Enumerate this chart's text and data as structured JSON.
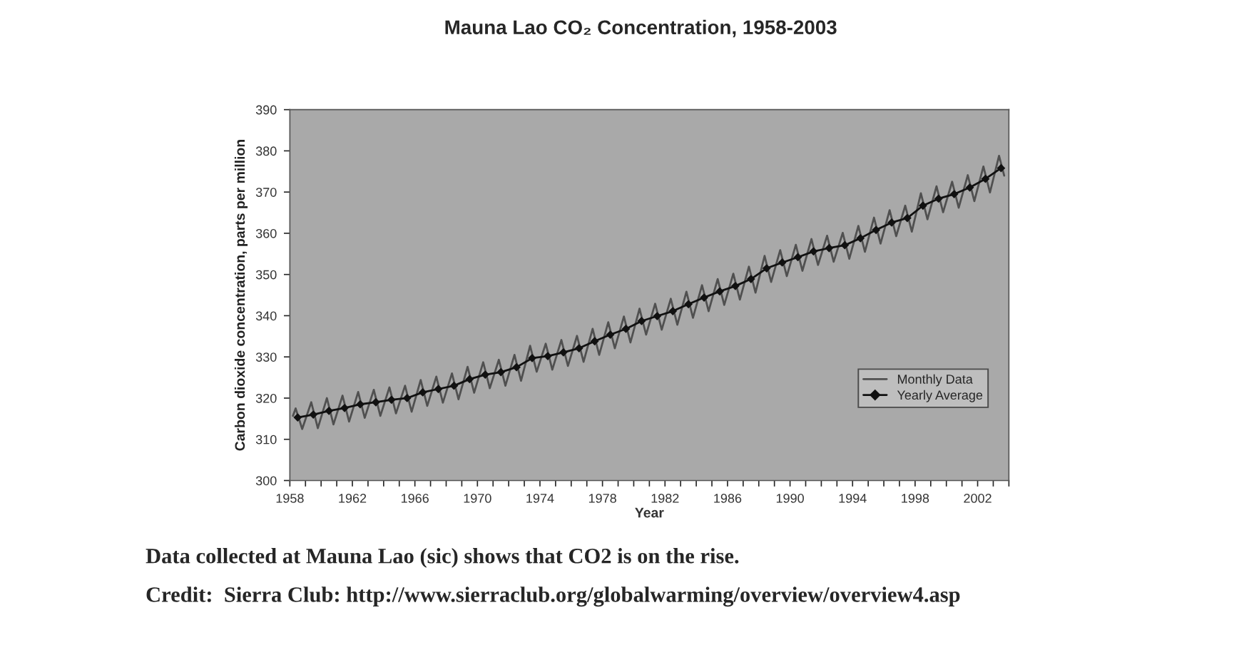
{
  "chart_data": {
    "type": "line",
    "title": "Mauna Lao CO₂ Concentration, 1958-2003",
    "xlabel": "Year",
    "ylabel": "Carbon dioxide concentration, parts per million",
    "annotations": [
      "Data collected at Mauna Lao (sic) shows that CO2 is on the rise.",
      "Credit:  Sierra Club: http://www.sierraclub.org/globalwarming/overview/overview4.asp"
    ],
    "xlim": [
      1958,
      2004
    ],
    "xticks": [
      1958,
      {
        "value": 1959,
        "label": null
      },
      {
        "value": 1960,
        "label": null
      },
      {
        "value": 1961,
        "label": null
      },
      1962,
      {
        "value": 1963,
        "label": null
      },
      {
        "value": 1964,
        "label": null
      },
      {
        "value": 1965,
        "label": null
      },
      1966,
      {
        "value": 1967,
        "label": null
      },
      {
        "value": 1968,
        "label": null
      },
      {
        "value": 1969,
        "label": null
      },
      1970,
      {
        "value": 1971,
        "label": null
      },
      {
        "value": 1972,
        "label": null
      },
      {
        "value": 1973,
        "label": null
      },
      1974,
      {
        "value": 1975,
        "label": null
      },
      {
        "value": 1976,
        "label": null
      },
      {
        "value": 1977,
        "label": null
      },
      1978,
      {
        "value": 1979,
        "label": null
      },
      {
        "value": 1980,
        "label": null
      },
      {
        "value": 1981,
        "label": null
      },
      1982,
      {
        "value": 1983,
        "label": null
      },
      {
        "value": 1984,
        "label": null
      },
      {
        "value": 1985,
        "label": null
      },
      1986,
      {
        "value": 1987,
        "label": null
      },
      {
        "value": 1988,
        "label": null
      },
      {
        "value": 1989,
        "label": null
      },
      1990,
      {
        "value": 1991,
        "label": null
      },
      {
        "value": 1992,
        "label": null
      },
      {
        "value": 1993,
        "label": null
      },
      1994,
      {
        "value": 1995,
        "label": null
      },
      {
        "value": 1996,
        "label": null
      },
      {
        "value": 1997,
        "label": null
      },
      1998,
      {
        "value": 1999,
        "label": null
      },
      {
        "value": 2000,
        "label": null
      },
      {
        "value": 2001,
        "label": null
      },
      2002,
      {
        "value": 2003,
        "label": null
      },
      {
        "value": 2004,
        "label": null
      }
    ],
    "ylim": [
      300,
      390
    ],
    "yticks": [
      300,
      310,
      320,
      330,
      340,
      350,
      360,
      370,
      380,
      390
    ],
    "grid": false,
    "legend": "bottom right",
    "line_style": "solid",
    "series": [
      {
        "name": "Monthly Data",
        "color": "#505050",
        "marker": "none",
        "x": [
          1958.2,
          1958.37,
          1958.79,
          1959.37,
          1959.79,
          1960.37,
          1960.79,
          1961.37,
          1961.79,
          1962.37,
          1962.79,
          1963.37,
          1963.79,
          1964.37,
          1964.79,
          1965.37,
          1965.79,
          1966.37,
          1966.79,
          1967.37,
          1967.79,
          1968.37,
          1968.79,
          1969.37,
          1969.79,
          1970.37,
          1970.79,
          1971.37,
          1971.79,
          1972.37,
          1972.79,
          1973.37,
          1973.79,
          1974.37,
          1974.79,
          1975.37,
          1975.79,
          1976.37,
          1976.79,
          1977.37,
          1977.79,
          1978.37,
          1978.79,
          1979.37,
          1979.79,
          1980.37,
          1980.79,
          1981.37,
          1981.79,
          1982.37,
          1982.79,
          1983.37,
          1983.79,
          1984.37,
          1984.79,
          1985.37,
          1985.79,
          1986.37,
          1986.79,
          1987.37,
          1987.79,
          1988.37,
          1988.79,
          1989.37,
          1989.79,
          1990.37,
          1990.79,
          1991.37,
          1991.79,
          1992.37,
          1992.79,
          1993.37,
          1993.79,
          1994.37,
          1994.79,
          1995.37,
          1995.79,
          1996.37,
          1996.79,
          1997.37,
          1997.79,
          1998.37,
          1998.79,
          1999.37,
          1999.79,
          2000.37,
          2000.79,
          2001.37,
          2001.79,
          2002.37,
          2002.79,
          2003.37,
          2003.7
        ],
        "values": [
          315.7,
          317.5,
          312.5,
          319.0,
          312.7,
          320.0,
          313.6,
          320.6,
          314.3,
          321.5,
          315.2,
          322.0,
          315.7,
          322.6,
          316.3,
          323.0,
          316.7,
          324.4,
          318.1,
          325.2,
          318.9,
          326.0,
          319.7,
          327.6,
          321.3,
          328.7,
          322.4,
          329.3,
          323.0,
          330.5,
          324.2,
          332.7,
          326.4,
          333.2,
          326.9,
          334.1,
          327.8,
          335.1,
          328.8,
          336.8,
          330.5,
          338.4,
          332.1,
          339.8,
          333.5,
          341.7,
          335.4,
          342.9,
          336.6,
          344.1,
          337.8,
          345.8,
          339.5,
          347.4,
          341.1,
          348.9,
          342.6,
          350.2,
          343.9,
          351.9,
          345.6,
          354.5,
          348.2,
          355.9,
          349.6,
          357.2,
          350.9,
          358.6,
          352.3,
          359.4,
          353.1,
          360.1,
          353.8,
          361.8,
          355.5,
          363.8,
          357.5,
          365.6,
          359.3,
          366.7,
          360.4,
          369.7,
          363.4,
          371.4,
          365.1,
          372.5,
          366.2,
          374.1,
          367.8,
          376.2,
          369.9,
          378.8,
          374.0
        ]
      },
      {
        "name": "Yearly Average",
        "color": "#111111",
        "marker": "diamond",
        "x": [
          1958.5,
          1959.5,
          1960.5,
          1961.5,
          1962.5,
          1963.5,
          1964.5,
          1965.5,
          1966.5,
          1967.5,
          1968.5,
          1969.5,
          1970.5,
          1971.5,
          1972.5,
          1973.5,
          1974.5,
          1975.5,
          1976.5,
          1977.5,
          1978.5,
          1979.5,
          1980.5,
          1981.5,
          1982.5,
          1983.5,
          1984.5,
          1985.5,
          1986.5,
          1987.5,
          1988.5,
          1989.5,
          1990.5,
          1991.5,
          1992.5,
          1993.5,
          1994.5,
          1995.5,
          1996.5,
          1997.5,
          1998.5,
          1999.5,
          2000.5,
          2001.5,
          2002.5,
          2003.5
        ],
        "values": [
          315.3,
          316.0,
          316.9,
          317.6,
          318.5,
          319.0,
          319.6,
          320.0,
          321.4,
          322.2,
          323.0,
          324.6,
          325.7,
          326.3,
          327.5,
          329.7,
          330.2,
          331.1,
          332.1,
          333.8,
          335.4,
          336.8,
          338.7,
          339.9,
          341.1,
          342.8,
          344.4,
          345.9,
          347.2,
          348.9,
          351.5,
          352.9,
          354.2,
          355.6,
          356.4,
          357.1,
          358.8,
          360.8,
          362.6,
          363.7,
          366.7,
          368.4,
          369.5,
          371.1,
          373.2,
          375.8
        ]
      }
    ]
  }
}
